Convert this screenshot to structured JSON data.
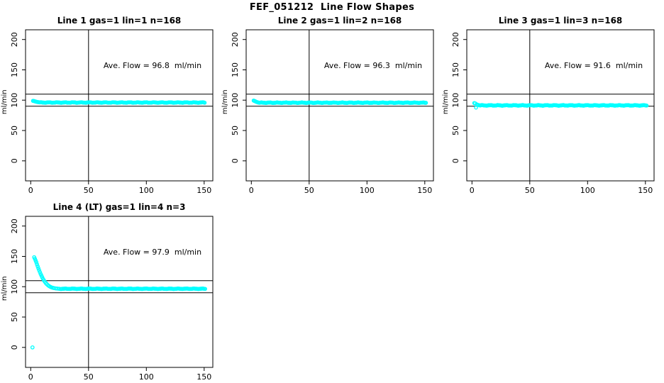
{
  "figure": {
    "title": "FEF_051212  Line Flow Shapes",
    "background": "#FFFFFF",
    "text_color": "#000000"
  },
  "style": {
    "marker_color": "#00FFFF",
    "axis_color": "#000000"
  },
  "chart_data": [
    {
      "type": "scatter",
      "title": "Line 1 gas=1 lin=1 n=168",
      "annotation": "Ave. Flow = 96.8  ml/min",
      "ave_flow_ml_min": 96.8,
      "n": 168,
      "ylabel": "ml/min",
      "xticks": [
        0,
        50,
        100,
        150
      ],
      "yticks": [
        0,
        50,
        100,
        150,
        200
      ],
      "xlim": [
        -4.5,
        157.5
      ],
      "ylim": [
        -33,
        216
      ],
      "vline_x": 50,
      "hlines": [
        110,
        90
      ],
      "legend": "none",
      "grid": false,
      "start_points": [
        [
          2,
          98.9
        ],
        [
          2.7,
          98.6
        ],
        [
          3.4,
          98.2
        ],
        [
          4.1,
          97.8
        ],
        [
          4.8,
          97.4
        ],
        [
          5.5,
          97.1
        ],
        [
          6.2,
          96.8
        ],
        [
          7,
          96.6
        ]
      ],
      "flat": {
        "x_from": 8,
        "x_to": 151,
        "step": 0.8,
        "base": 96.1,
        "amp": 0.35
      }
    },
    {
      "type": "scatter",
      "title": "Line 2 gas=1 lin=2 n=168",
      "annotation": "Ave. Flow = 96.3  ml/min",
      "ave_flow_ml_min": 96.3,
      "n": 168,
      "ylabel": "ml/min",
      "xticks": [
        0,
        50,
        100,
        150
      ],
      "yticks": [
        0,
        50,
        100,
        150,
        200
      ],
      "xlim": [
        -4.5,
        157.5
      ],
      "ylim": [
        -33,
        216
      ],
      "vline_x": 50,
      "hlines": [
        110,
        90
      ],
      "legend": "none",
      "grid": false,
      "start_points": [
        [
          2,
          99.3
        ],
        [
          2.7,
          98.8
        ],
        [
          3.4,
          98.1
        ],
        [
          4.1,
          97.4
        ],
        [
          4.8,
          96.9
        ],
        [
          5.5,
          96.4
        ],
        [
          6.2,
          96.1
        ]
      ],
      "flat": {
        "x_from": 7,
        "x_to": 151,
        "step": 0.8,
        "base": 95.8,
        "amp": 0.35
      }
    },
    {
      "type": "scatter",
      "title": "Line 3 gas=1 lin=3 n=168",
      "annotation": "Ave. Flow = 91.6  ml/min",
      "ave_flow_ml_min": 91.6,
      "n": 168,
      "ylabel": "ml/min",
      "xticks": [
        0,
        50,
        100,
        150
      ],
      "yticks": [
        0,
        50,
        100,
        150,
        200
      ],
      "xlim": [
        -4.5,
        157.5
      ],
      "ylim": [
        -33,
        216
      ],
      "vline_x": 50,
      "hlines": [
        110,
        90
      ],
      "legend": "none",
      "grid": false,
      "start_points": [
        [
          2,
          95.2
        ],
        [
          2.8,
          94.6
        ],
        [
          3.5,
          87.9
        ],
        [
          4.2,
          93.0
        ],
        [
          5,
          92.2
        ],
        [
          6,
          91.8
        ]
      ],
      "flat": {
        "x_from": 7,
        "x_to": 151,
        "step": 0.8,
        "base": 91.4,
        "amp": 0.4
      }
    },
    {
      "type": "scatter",
      "title": "Line 4 (LT) gas=1 lin=4 n=3",
      "annotation": "Ave. Flow = 97.9  ml/min",
      "ave_flow_ml_min": 97.9,
      "n": 3,
      "ylabel": "ml/min",
      "xticks": [
        0,
        50,
        100,
        150
      ],
      "yticks": [
        0,
        50,
        100,
        150,
        200
      ],
      "xlim": [
        -4.5,
        157.5
      ],
      "ylim": [
        -33,
        216
      ],
      "vline_x": 50,
      "hlines": [
        110,
        90
      ],
      "legend": "none",
      "grid": false,
      "start_points": [
        [
          1.5,
          0
        ],
        [
          3,
          148.5
        ],
        [
          3.6,
          146.0
        ],
        [
          4.2,
          143.2
        ],
        [
          4.8,
          140.2
        ],
        [
          5.4,
          136.8
        ],
        [
          6,
          133.6
        ],
        [
          6.6,
          130.4
        ],
        [
          7.2,
          127.3
        ],
        [
          7.9,
          124.1
        ],
        [
          8.6,
          121.0
        ],
        [
          9.3,
          118.0
        ],
        [
          10,
          115.2
        ],
        [
          10.8,
          112.4
        ],
        [
          11.6,
          109.9
        ],
        [
          12.4,
          107.7
        ],
        [
          13.2,
          105.8
        ],
        [
          14,
          104.1
        ],
        [
          15,
          102.3
        ],
        [
          16,
          100.9
        ],
        [
          17,
          99.8
        ],
        [
          18,
          98.9
        ],
        [
          19,
          98.3
        ],
        [
          20,
          97.8
        ],
        [
          21.5,
          97.2
        ],
        [
          23,
          96.9
        ],
        [
          24.5,
          96.7
        ]
      ],
      "flat": {
        "x_from": 26,
        "x_to": 151,
        "step": 0.8,
        "base": 96.6,
        "amp": 0.3
      }
    }
  ]
}
